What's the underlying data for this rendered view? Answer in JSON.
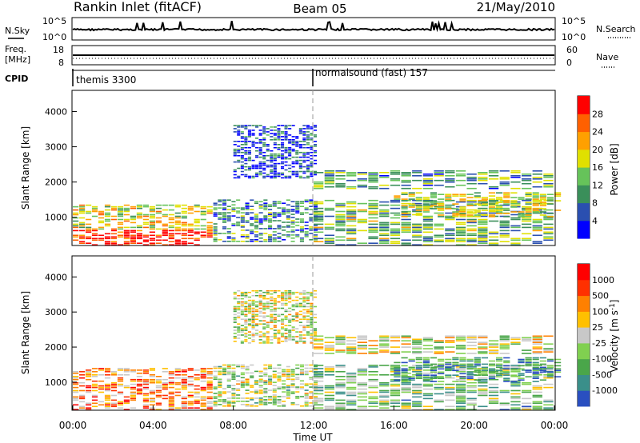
{
  "header": {
    "station": "Rankin Inlet (fitACF)",
    "beam": "Beam 05",
    "date": "21/May/2010"
  },
  "status_panels": {
    "nsky_label": "N.Sky",
    "nsky_ticks": [
      "10^5",
      "10^0"
    ],
    "nsearch_label": "N.Search",
    "nsearch_ticks": [
      "10^5",
      "10^0"
    ],
    "freq_label": "Freq.",
    "freq_unit": "[MHz]",
    "freq_ticks": [
      "18",
      "8"
    ],
    "nave_label": "Nave",
    "nave_ticks": [
      "60",
      "0"
    ],
    "cpid_label": "CPID",
    "cpid_segments": [
      {
        "name": "themis 3300",
        "start_hour": 0
      },
      {
        "name": "normalsound (fast) 157",
        "start_hour": 12
      }
    ]
  },
  "chart_data": [
    {
      "type": "heatmap",
      "panel": "power",
      "ylabel": "Slant Range [km]",
      "xlim_hours": [
        0,
        24
      ],
      "ylim_km": [
        200,
        4600
      ],
      "yticks": [
        "4000",
        "3000",
        "2000",
        "1000"
      ],
      "colorbar_label": "Power [dB]",
      "colorbar_ticks": [
        "28",
        "24",
        "20",
        "16",
        "12",
        "8",
        "4"
      ],
      "colors": [
        "#0000ff",
        "#2a4fb0",
        "#3a8f5a",
        "#66c35a",
        "#e0e000",
        "#ffa000",
        "#ff6000",
        "#ff0000"
      ],
      "regions": [
        {
          "t0": 0.0,
          "t1": 7.0,
          "r0": 200,
          "r1": 650,
          "level": 0.95
        },
        {
          "t0": 0.0,
          "t1": 7.0,
          "r0": 650,
          "r1": 1350,
          "level": 0.55
        },
        {
          "t0": 7.0,
          "t1": 12.0,
          "r0": 300,
          "r1": 1500,
          "level": 0.3
        },
        {
          "t0": 8.0,
          "t1": 12.0,
          "r0": 2100,
          "r1": 3600,
          "level": 0.15
        },
        {
          "t0": 12.0,
          "t1": 24.0,
          "r0": 1800,
          "r1": 2300,
          "level": 0.35
        },
        {
          "t0": 12.0,
          "t1": 24.0,
          "r0": 200,
          "r1": 1500,
          "level": 0.4
        },
        {
          "t0": 16.0,
          "t1": 24.0,
          "r0": 1000,
          "r1": 1700,
          "level": 0.5
        }
      ]
    },
    {
      "type": "heatmap",
      "panel": "velocity",
      "ylabel": "Slant Range [km]",
      "xlabel": "Time UT",
      "xlim_hours": [
        0,
        24
      ],
      "ylim_km": [
        200,
        4600
      ],
      "yticks": [
        "4000",
        "3000",
        "2000",
        "1000"
      ],
      "xticks": [
        "00:00",
        "04:00",
        "08:00",
        "12:00",
        "16:00",
        "20:00",
        "00:00"
      ],
      "colorbar_label": "Velocity [m s^-1]",
      "colorbar_ticks": [
        "1000",
        "500",
        "100",
        "25",
        "-25",
        "-100",
        "-500",
        "-1000"
      ],
      "colors": [
        "#2a4fc0",
        "#3a8f8a",
        "#4aa64a",
        "#80d050",
        "#c8c8c8",
        "#ffc000",
        "#ff8000",
        "#ff3000",
        "#ff0000"
      ],
      "regions": [
        {
          "t0": 0.0,
          "t1": 7.0,
          "r0": 200,
          "r1": 1400,
          "level": 0.7
        },
        {
          "t0": 7.0,
          "t1": 12.0,
          "r0": 300,
          "r1": 1500,
          "level": 0.45
        },
        {
          "t0": 8.0,
          "t1": 12.0,
          "r0": 2100,
          "r1": 3600,
          "level": 0.5
        },
        {
          "t0": 12.0,
          "t1": 24.0,
          "r0": 1800,
          "r1": 2300,
          "level": 0.5
        },
        {
          "t0": 12.0,
          "t1": 24.0,
          "r0": 200,
          "r1": 1500,
          "level": 0.35
        },
        {
          "t0": 16.0,
          "t1": 24.0,
          "r0": 1000,
          "r1": 1700,
          "level": 0.2
        }
      ]
    }
  ]
}
